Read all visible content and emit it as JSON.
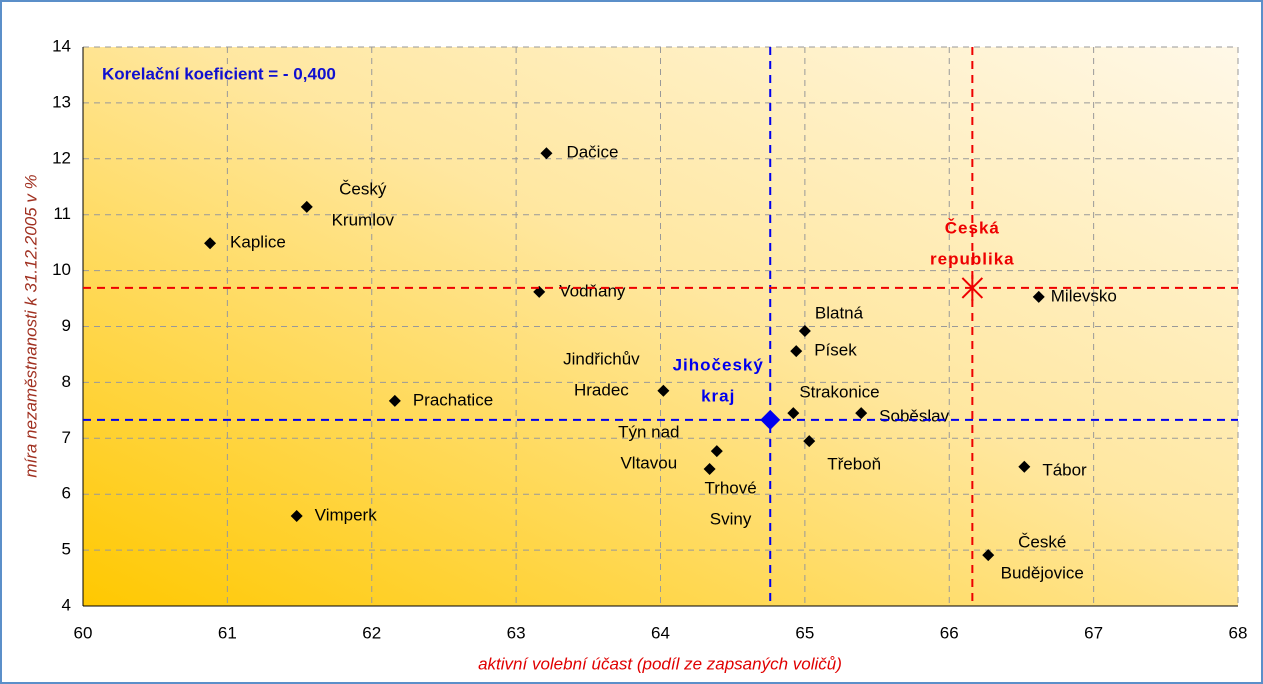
{
  "chart_data": {
    "type": "scatter",
    "annotation": "Korelační koeficient = - 0,400",
    "xlabel": "aktivní volební účast (podíl ze zapsaných voličů)",
    "ylabel": "míra nezaměstnanosti k 31.12.2005 v %",
    "xlim": [
      60,
      68
    ],
    "xticks": [
      60,
      61,
      62,
      63,
      64,
      65,
      66,
      67,
      68
    ],
    "ylim": [
      4,
      14
    ],
    "yticks": [
      4,
      5,
      6,
      7,
      8,
      9,
      10,
      11,
      12,
      13,
      14
    ],
    "grid": true,
    "color": "#000000",
    "points": [
      {
        "label": [
          "Dačice"
        ],
        "x": 63.21,
        "y": 12.1
      },
      {
        "label": [
          "Český",
          "Krumlov"
        ],
        "x": 61.55,
        "y": 11.14
      },
      {
        "label": [
          "Kaplice"
        ],
        "x": 60.88,
        "y": 10.49
      },
      {
        "label": [
          "Vodňany"
        ],
        "x": 63.16,
        "y": 9.62
      },
      {
        "label": [
          "Blatná"
        ],
        "x": 65.0,
        "y": 8.92
      },
      {
        "label": [
          "Písek"
        ],
        "x": 64.94,
        "y": 8.56
      },
      {
        "label": [
          "Jindřichův",
          "Hradec"
        ],
        "x": 64.02,
        "y": 7.85
      },
      {
        "label": [
          "Prachatice"
        ],
        "x": 62.16,
        "y": 7.67
      },
      {
        "label": [
          "Strakonice"
        ],
        "x": 64.92,
        "y": 7.45
      },
      {
        "label": [
          "Soběslav"
        ],
        "x": 65.39,
        "y": 7.45
      },
      {
        "label": [
          "Týn nad",
          "Vltavou"
        ],
        "x": 64.39,
        "y": 6.77
      },
      {
        "label": [
          "Třeboň"
        ],
        "x": 65.03,
        "y": 6.95
      },
      {
        "label": [
          "Trhové",
          "Sviny"
        ],
        "x": 64.34,
        "y": 6.45
      },
      {
        "label": [
          "Tábor"
        ],
        "x": 66.52,
        "y": 6.49
      },
      {
        "label": [
          "Vimperk"
        ],
        "x": 61.48,
        "y": 5.61
      },
      {
        "label": [
          "České",
          "Budějovice"
        ],
        "x": 66.27,
        "y": 4.91
      },
      {
        "label": [
          "Milevsko"
        ],
        "x": 66.62,
        "y": 9.53
      }
    ],
    "references": [
      {
        "label": [
          "Jihočeský",
          "kraj"
        ],
        "x": 64.76,
        "y": 7.33,
        "color": "#0000ee",
        "marker": "diamond"
      },
      {
        "label": [
          "Česká",
          "republika"
        ],
        "x": 66.16,
        "y": 9.69,
        "color": "#ee0000",
        "marker": "star"
      }
    ]
  }
}
